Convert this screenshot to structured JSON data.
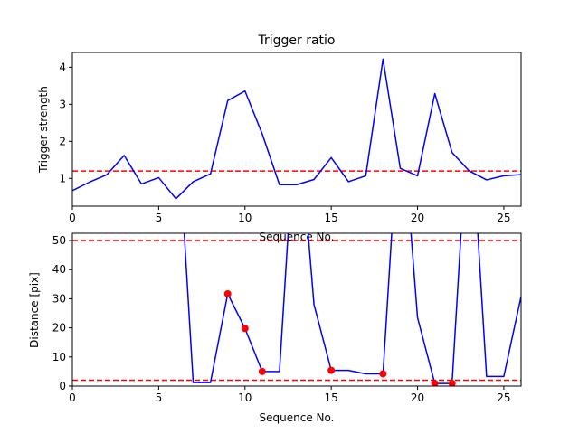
{
  "chart_data": [
    {
      "type": "line",
      "title": "Trigger ratio",
      "xlabel": "Sequence No.",
      "ylabel": "Trigger strength",
      "xlim": [
        0,
        26
      ],
      "ylim": [
        0.25,
        4.4
      ],
      "xticks": [
        0,
        5,
        10,
        15,
        20,
        25
      ],
      "yticks": [
        1,
        2,
        3,
        4
      ],
      "grid": false,
      "series": [
        {
          "color": "#0000ff",
          "x": [
            0,
            1,
            2,
            3,
            4,
            5,
            6,
            7,
            8,
            9,
            10,
            11,
            12,
            13,
            14,
            15,
            16,
            17,
            18,
            19,
            20,
            21,
            22,
            23,
            24,
            25,
            26
          ],
          "values": [
            0.67,
            0.9,
            1.1,
            1.62,
            0.85,
            1.02,
            0.45,
            0.91,
            1.12,
            3.1,
            3.36,
            2.2,
            0.83,
            0.83,
            0.97,
            1.56,
            0.91,
            1.07,
            4.22,
            1.27,
            1.07,
            3.29,
            1.7,
            1.2,
            0.96,
            1.07,
            1.1
          ]
        }
      ],
      "hlines": [
        {
          "y": 1.2,
          "color": "#ff0000",
          "style": "dashed"
        }
      ]
    },
    {
      "type": "line",
      "title": "",
      "xlabel": "Sequence No.",
      "ylabel": "Distance [pix]",
      "xlim": [
        0,
        26
      ],
      "ylim": [
        0,
        52.5
      ],
      "xticks": [
        0,
        5,
        10,
        15,
        20,
        25
      ],
      "yticks": [
        0,
        10,
        20,
        30,
        40,
        50
      ],
      "grid": false,
      "series": [
        {
          "color": "#0000ff",
          "x": [
            6,
            7,
            8,
            9,
            10,
            11,
            12,
            13,
            14,
            15,
            16,
            17,
            18,
            19,
            20,
            21,
            22,
            23,
            24,
            25,
            26
          ],
          "values": [
            100,
            1.2,
            1.2,
            31.7,
            19.8,
            5.0,
            5.0,
            100,
            28,
            5.4,
            5.4,
            4.2,
            4.2,
            100,
            23.5,
            0.9,
            0.9,
            100,
            3.3,
            3.3,
            30.8
          ]
        }
      ],
      "markers": {
        "color": "#ff0000",
        "x": [
          9,
          10,
          11,
          15,
          18,
          21,
          22
        ],
        "values": [
          31.7,
          19.8,
          5.0,
          5.4,
          4.2,
          0.9,
          0.9
        ]
      },
      "hlines": [
        {
          "y": 50,
          "color": "#ff0000",
          "style": "dashed"
        },
        {
          "y": 2,
          "color": "#ff0000",
          "style": "dashed"
        }
      ]
    }
  ]
}
